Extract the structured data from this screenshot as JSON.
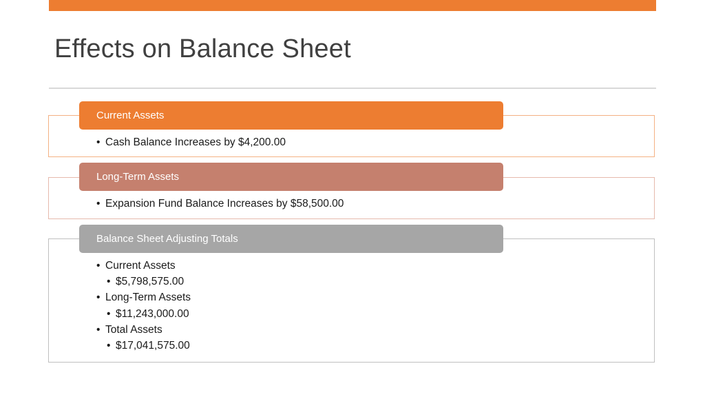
{
  "slide": {
    "title": "Effects on Balance Sheet",
    "accent_color": "#ED7D31"
  },
  "blocks": [
    {
      "header": "Current Assets",
      "header_color": "#ED7D31",
      "border_color": "#F4B183",
      "bullets": [
        {
          "text": "Cash Balance Increases by $4,200.00",
          "level": 1
        }
      ]
    },
    {
      "header": "Long-Term Assets",
      "header_color": "#C5806E",
      "border_color": "#E6B9AC",
      "bullets": [
        {
          "text": "Expansion Fund Balance Increases by $58,500.00",
          "level": 1
        }
      ]
    },
    {
      "header": "Balance Sheet Adjusting Totals",
      "header_color": "#A6A6A6",
      "border_color": "#BFBFBF",
      "bullets": [
        {
          "text": "Current Assets",
          "level": 1
        },
        {
          "text": "$5,798,575.00",
          "level": 2
        },
        {
          "text": "Long-Term Assets",
          "level": 1
        },
        {
          "text": "$11,243,000.00",
          "level": 2
        },
        {
          "text": "Total Assets",
          "level": 1
        },
        {
          "text": "$17,041,575.00",
          "level": 2
        }
      ]
    }
  ]
}
